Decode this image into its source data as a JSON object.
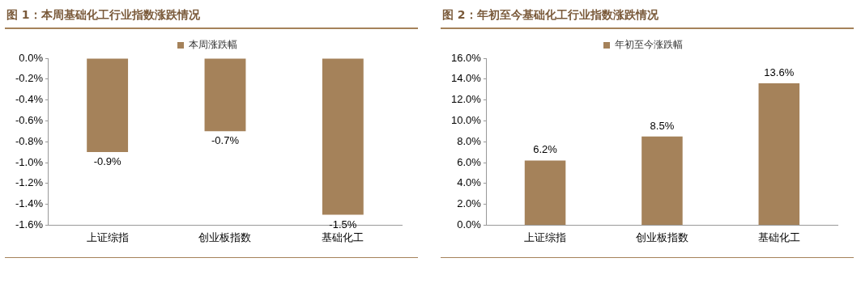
{
  "chart_data": [
    {
      "type": "bar",
      "title": "图 1：本周基础化工行业指数涨跌情况",
      "categories": [
        "上证综指",
        "创业板指数",
        "基础化工"
      ],
      "series": [
        {
          "name": "本周涨跌幅",
          "color": "#a5825a",
          "values": [
            -0.9,
            -0.7,
            -1.5
          ],
          "value_labels": [
            "-0.9%",
            "-0.7%",
            "-1.5%"
          ]
        }
      ],
      "ylim": [
        -1.6,
        0
      ],
      "yticks": [
        {
          "value": 0,
          "label": "0.0%"
        },
        {
          "value": -0.2,
          "label": "-0.2%"
        },
        {
          "value": -0.4,
          "label": "-0.4%"
        },
        {
          "value": -0.6,
          "label": "-0.6%"
        },
        {
          "value": -0.8,
          "label": "-0.8%"
        },
        {
          "value": -1.0,
          "label": "-1.0%"
        },
        {
          "value": -1.2,
          "label": "-1.2%"
        },
        {
          "value": -1.4,
          "label": "-1.4%"
        },
        {
          "value": -1.6,
          "label": "-1.6%"
        }
      ],
      "grid": false,
      "legend": "top"
    },
    {
      "type": "bar",
      "title": "图 2：年初至今基础化工行业指数涨跌情况",
      "categories": [
        "上证综指",
        "创业板指数",
        "基础化工"
      ],
      "series": [
        {
          "name": "年初至今涨跌幅",
          "color": "#a5825a",
          "values": [
            6.2,
            8.5,
            13.6
          ],
          "value_labels": [
            "6.2%",
            "8.5%",
            "13.6%"
          ]
        }
      ],
      "ylim": [
        0,
        16
      ],
      "yticks": [
        {
          "value": 0,
          "label": "0.0%"
        },
        {
          "value": 2,
          "label": "2.0%"
        },
        {
          "value": 4,
          "label": "4.0%"
        },
        {
          "value": 6,
          "label": "6.0%"
        },
        {
          "value": 8,
          "label": "8.0%"
        },
        {
          "value": 10,
          "label": "10.0%"
        },
        {
          "value": 12,
          "label": "12.0%"
        },
        {
          "value": 14,
          "label": "14.0%"
        },
        {
          "value": 16,
          "label": "16.0%"
        }
      ],
      "grid": false,
      "legend": "top"
    }
  ]
}
